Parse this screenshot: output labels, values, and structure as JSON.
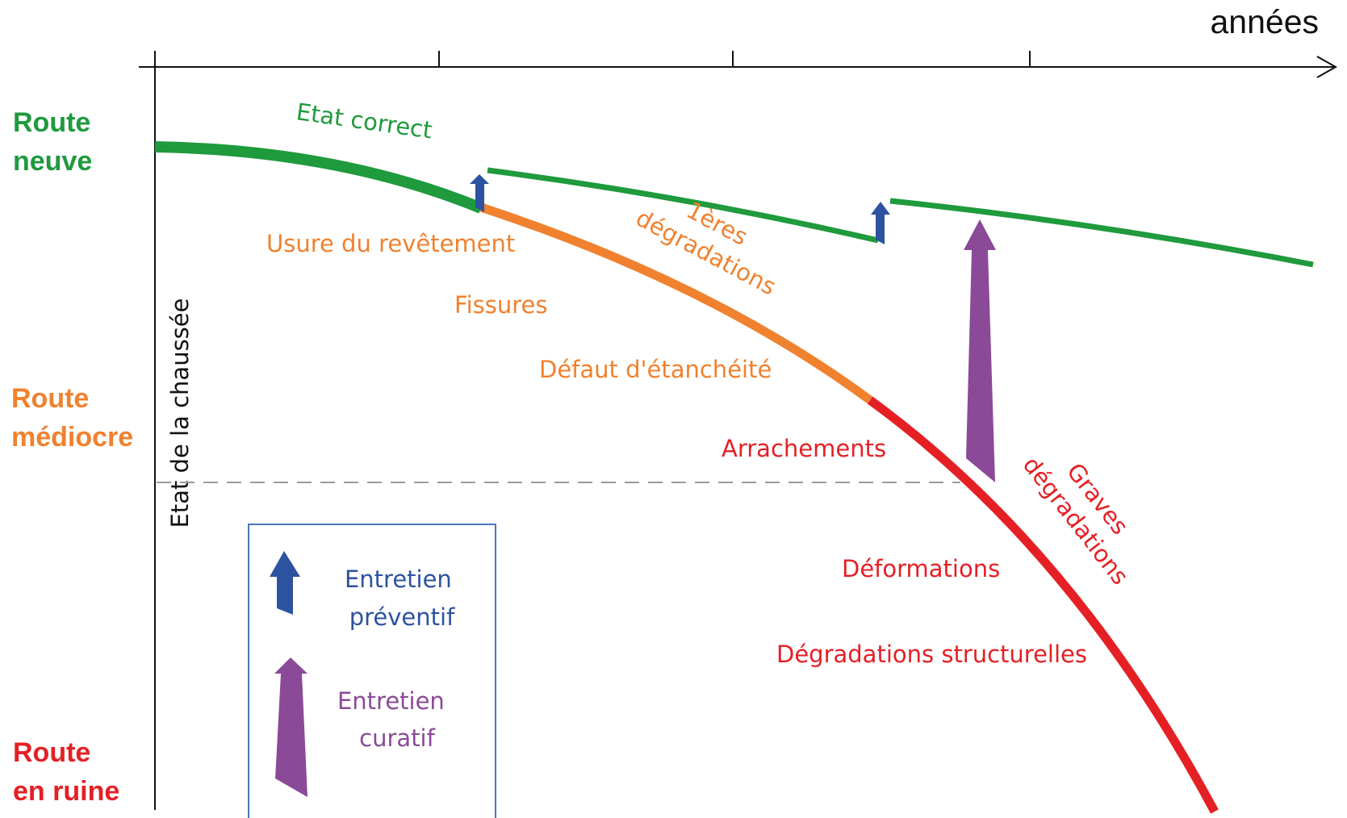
{
  "colors": {
    "green": "#1f9a3d",
    "orange": "#f0812e",
    "red": "#e42025",
    "blue": "#2d52a0",
    "purple": "#8a4a97",
    "axis": "#111111",
    "dashed": "#9a9a9a",
    "legend_border": "#4a78b8"
  },
  "axes": {
    "x_label": "années",
    "y_label": "Etat de la chaussée"
  },
  "levels": {
    "new": [
      "Route",
      "neuve"
    ],
    "mediocre": [
      "Route",
      "médiocre"
    ],
    "ruin": [
      "Route",
      "en ruine"
    ]
  },
  "curve_labels": {
    "etat_correct": "Etat correct",
    "premieres_degradations": [
      "1ères",
      "dégradations"
    ],
    "graves_degradations": [
      "Graves",
      "dégradations"
    ]
  },
  "symptoms": {
    "usure": "Usure du revêtement",
    "fissures": "Fissures",
    "defaut": "Défaut d'étanchéité",
    "arrachements": "Arrachements",
    "deformations": "Déformations",
    "degradations_structurelles": "Dégradations structurelles"
  },
  "legend": {
    "preventif": [
      "Entretien",
      "préventif"
    ],
    "preventif_icon": "blue-arrow-up-icon",
    "curatif": [
      "Entretien",
      "curatif"
    ],
    "curatif_icon": "purple-arrow-up-icon"
  }
}
